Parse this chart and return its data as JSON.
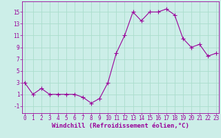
{
  "x": [
    0,
    1,
    2,
    3,
    4,
    5,
    6,
    7,
    8,
    9,
    10,
    11,
    12,
    13,
    14,
    15,
    16,
    17,
    18,
    19,
    20,
    21,
    22,
    23
  ],
  "y": [
    3,
    1,
    2,
    1,
    1,
    1,
    1,
    0.5,
    -0.5,
    0.3,
    3,
    8,
    11,
    15,
    13.5,
    15,
    15,
    15.5,
    14.5,
    10.5,
    9,
    9.5,
    7.5,
    8
  ],
  "line_color": "#990099",
  "marker": "D",
  "marker_size": 2,
  "bg_color": "#cceee8",
  "grid_color": "#aaddcc",
  "xlabel": "Windchill (Refroidissement éolien,°C)",
  "xlabel_fontsize": 6.5,
  "ytick_labels": [
    "-1",
    "1",
    "3",
    "5",
    "7",
    "9",
    "11",
    "13",
    "15"
  ],
  "ytick_vals": [
    -1,
    1,
    3,
    5,
    7,
    9,
    11,
    13,
    15
  ],
  "xtick_vals": [
    0,
    1,
    2,
    3,
    4,
    5,
    6,
    7,
    8,
    9,
    10,
    11,
    12,
    13,
    14,
    15,
    16,
    17,
    18,
    19,
    20,
    21,
    22,
    23
  ],
  "ylim": [
    -2.2,
    16.8
  ],
  "xlim": [
    -0.3,
    23.3
  ],
  "tick_fontsize": 5.5,
  "linewidth": 0.8
}
